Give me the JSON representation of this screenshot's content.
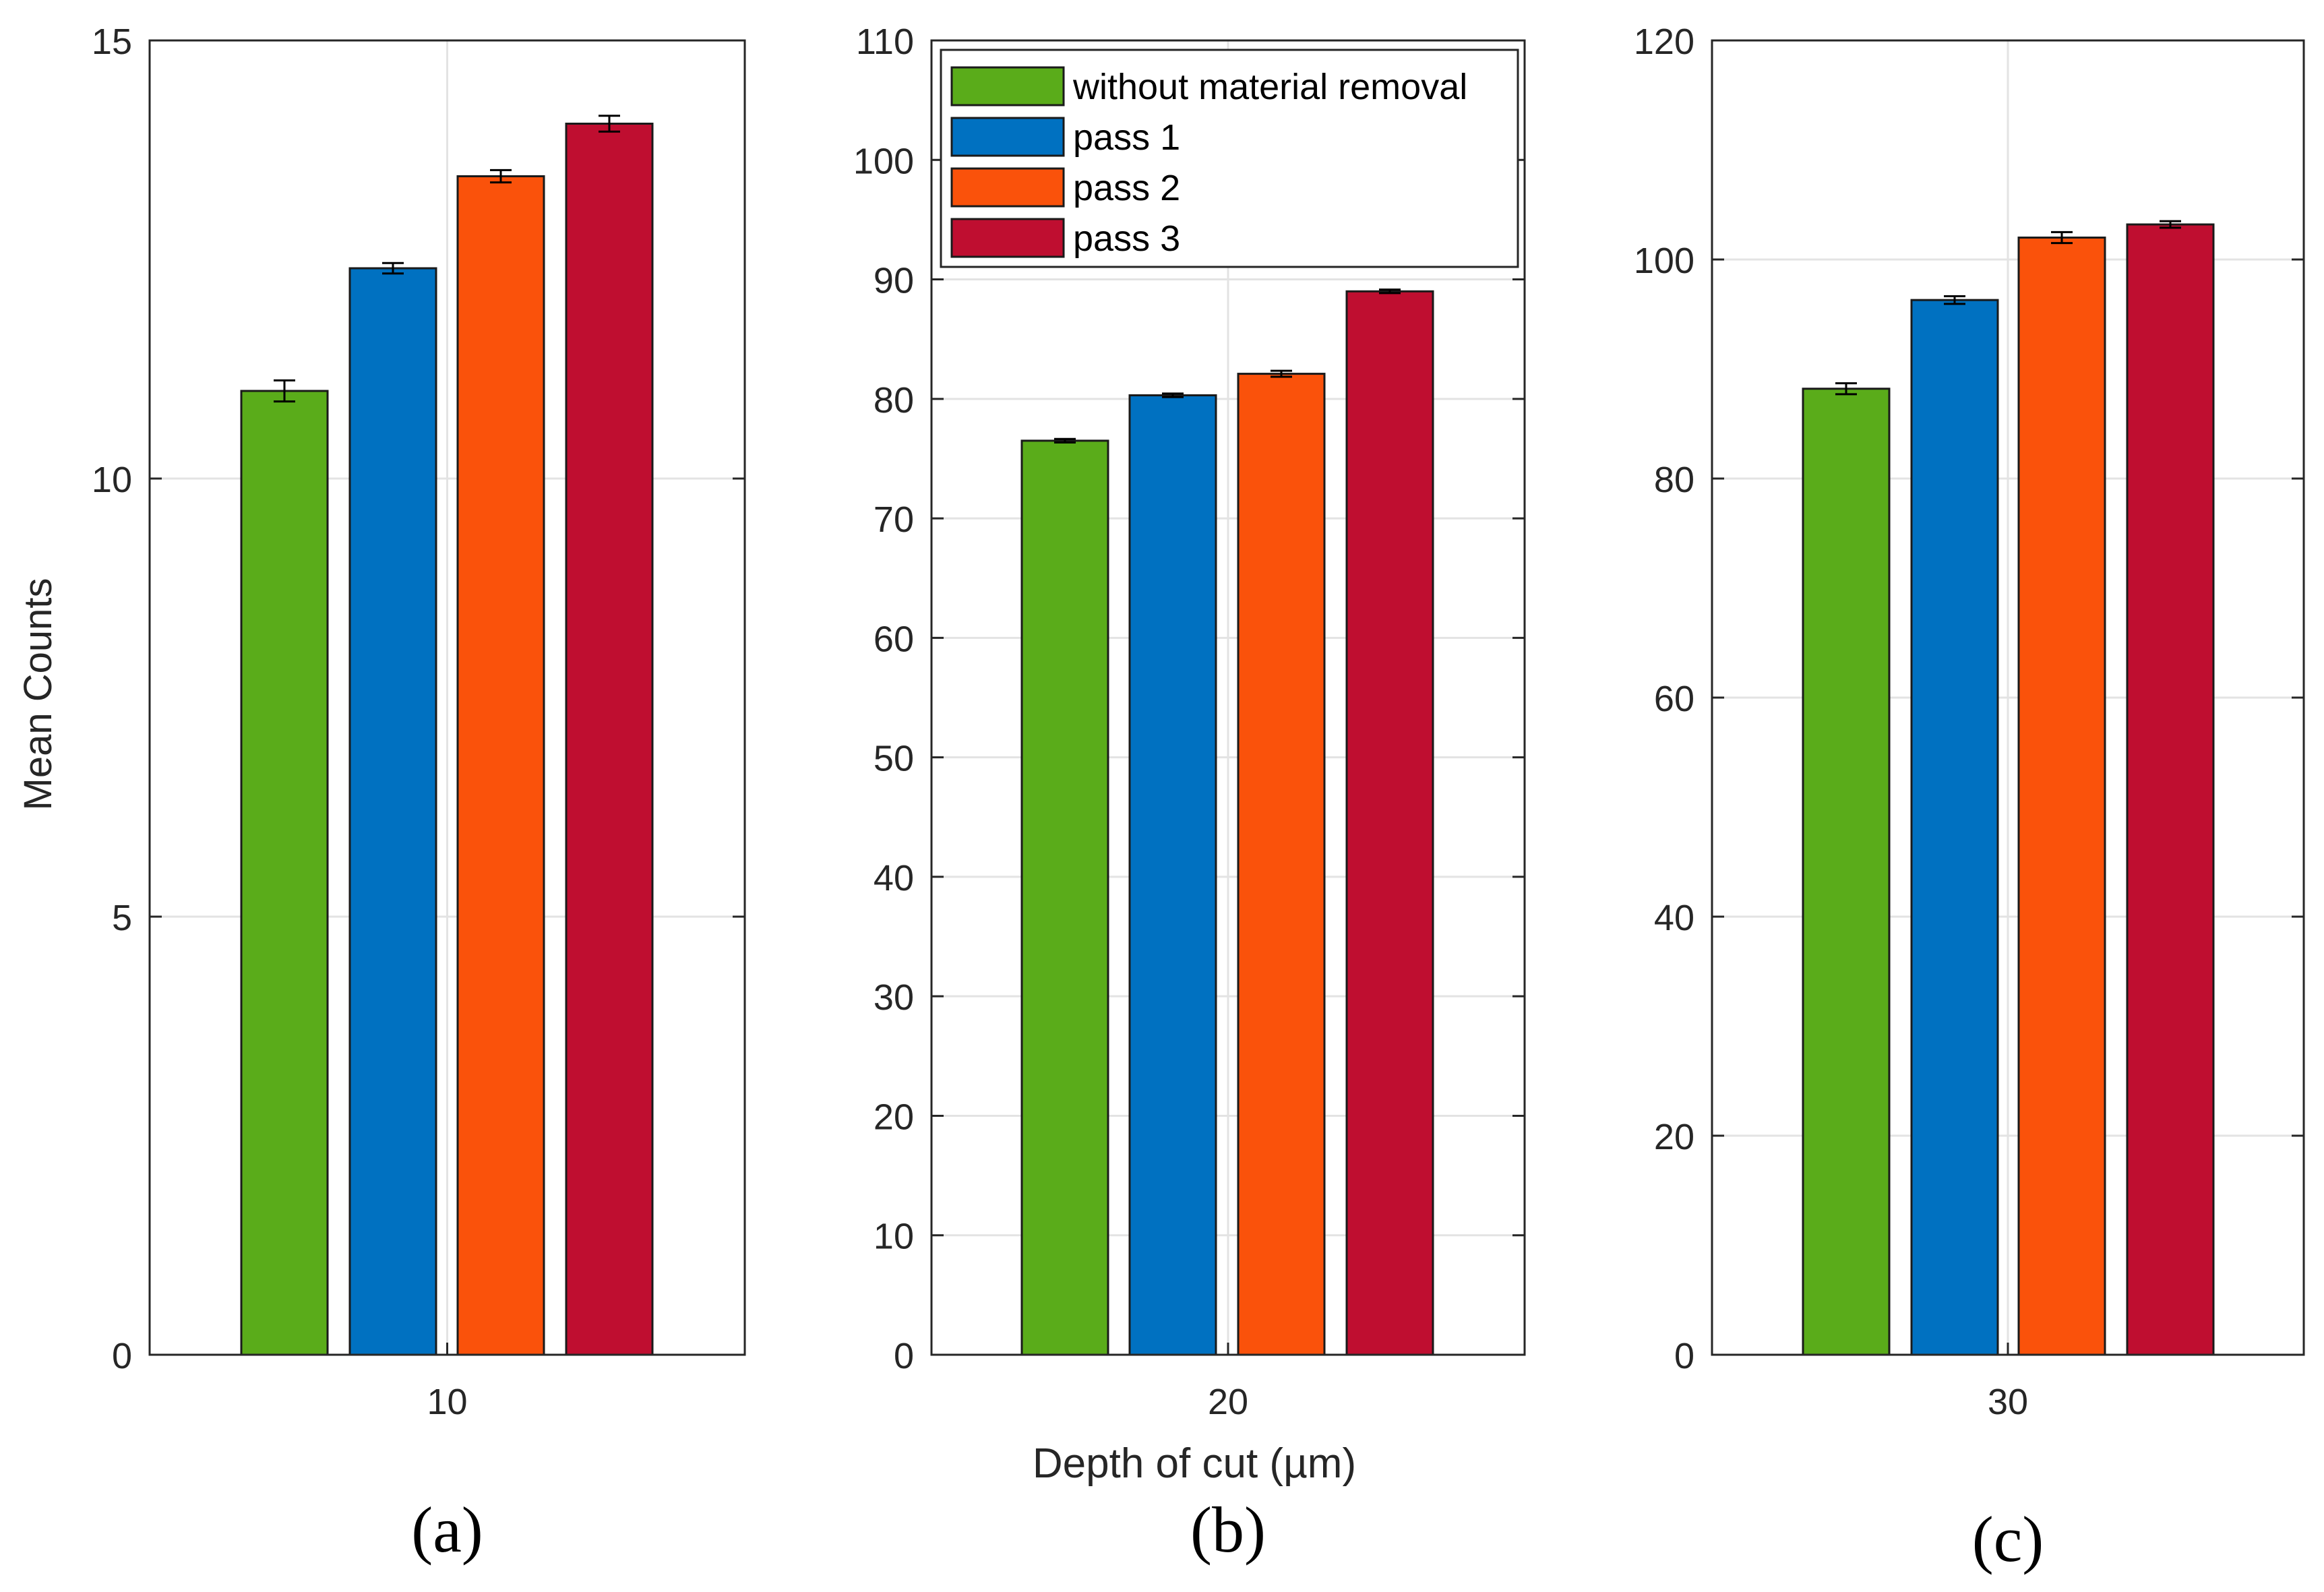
{
  "figure": {
    "ylabel": "Mean Counts",
    "xlabel": "Depth of cut (µm)",
    "legend": [
      {
        "label": "without material removal",
        "color": "#5aac1a"
      },
      {
        "label": "pass 1",
        "color": "#0071c1"
      },
      {
        "label": "pass 2",
        "color": "#fa520b"
      },
      {
        "label": "pass 3",
        "color": "#bf0e30"
      }
    ]
  },
  "chart_data": [
    {
      "type": "bar",
      "panel_label": "(a)",
      "categories": [
        "10"
      ],
      "series": [
        {
          "name": "without material removal",
          "value": 11.0,
          "err": 0.12
        },
        {
          "name": "pass 1",
          "value": 12.4,
          "err": 0.06
        },
        {
          "name": "pass 2",
          "value": 13.45,
          "err": 0.07
        },
        {
          "name": "pass 3",
          "value": 14.05,
          "err": 0.09
        }
      ],
      "ylim": [
        0,
        15
      ],
      "yticks": [
        0,
        5,
        10,
        15
      ],
      "ytick_labels": [
        "0",
        "5",
        "10",
        "15"
      ],
      "grid": true
    },
    {
      "type": "bar",
      "panel_label": "(b)",
      "categories": [
        "20"
      ],
      "series": [
        {
          "name": "without material removal",
          "value": 76.5,
          "err": 0.15
        },
        {
          "name": "pass 1",
          "value": 80.3,
          "err": 0.15
        },
        {
          "name": "pass 2",
          "value": 82.1,
          "err": 0.25
        },
        {
          "name": "pass 3",
          "value": 89.0,
          "err": 0.15
        }
      ],
      "ylim": [
        0,
        110
      ],
      "yticks": [
        0,
        10,
        20,
        30,
        40,
        50,
        60,
        70,
        80,
        90,
        100,
        110
      ],
      "ytick_labels": [
        "0",
        "10",
        "20",
        "30",
        "40",
        "50",
        "60",
        "70",
        "80",
        "90",
        "100",
        "110"
      ],
      "grid": true,
      "legend_position": "top"
    },
    {
      "type": "bar",
      "panel_label": "(c)",
      "categories": [
        "30"
      ],
      "series": [
        {
          "name": "without material removal",
          "value": 88.2,
          "err": 0.5
        },
        {
          "name": "pass 1",
          "value": 96.3,
          "err": 0.35
        },
        {
          "name": "pass 2",
          "value": 102.0,
          "err": 0.5
        },
        {
          "name": "pass 3",
          "value": 103.2,
          "err": 0.3
        }
      ],
      "ylim": [
        0,
        120
      ],
      "yticks": [
        0,
        20,
        40,
        60,
        80,
        100,
        120
      ],
      "ytick_labels": [
        "0",
        "20",
        "40",
        "60",
        "80",
        "100",
        "120"
      ],
      "grid": true
    }
  ]
}
